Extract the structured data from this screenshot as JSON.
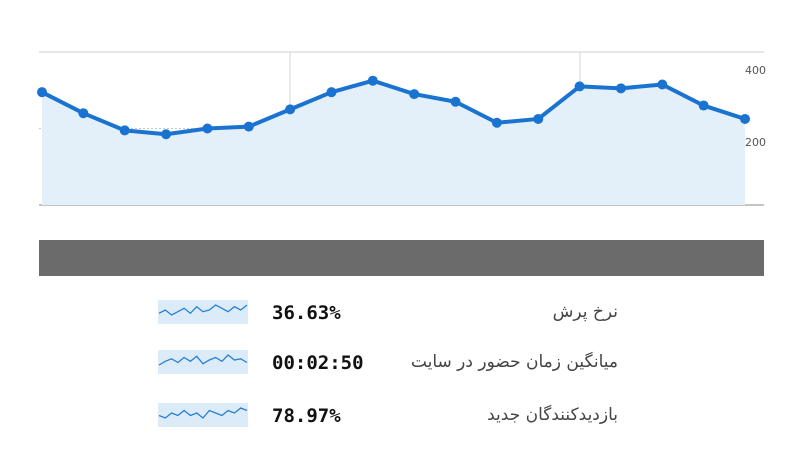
{
  "chart_data": {
    "type": "area",
    "y_ticks": [
      "400",
      "200"
    ],
    "ylim": [
      0,
      400
    ],
    "values": [
      295,
      240,
      195,
      185,
      200,
      205,
      250,
      295,
      325,
      290,
      270,
      215,
      225,
      310,
      305,
      315,
      260,
      225
    ],
    "grid": true,
    "line_color": "#1a73d1",
    "fill_color": "#e4f0f9"
  },
  "metrics": [
    {
      "value": "36.63%",
      "label": "نرخ پرش",
      "spark": [
        5,
        7,
        4,
        6,
        8,
        5,
        9,
        6,
        7,
        10,
        8,
        6,
        9,
        7,
        10
      ]
    },
    {
      "value": "00:02:50",
      "label": "میانگین زمان حضور در سایت",
      "spark": [
        6,
        9,
        11,
        8,
        12,
        9,
        13,
        7,
        10,
        12,
        9,
        14,
        10,
        11,
        8
      ]
    },
    {
      "value": "78.97%",
      "label": "بازدیدکنندگان جدید",
      "spark": [
        7,
        6,
        8,
        7,
        9,
        7,
        8,
        6,
        9,
        8,
        7,
        9,
        8,
        10,
        9
      ]
    }
  ],
  "colors": {
    "bar": "#6b6b6b",
    "spark_fill": "#dbecf8",
    "spark_line": "#2a7fd4"
  }
}
